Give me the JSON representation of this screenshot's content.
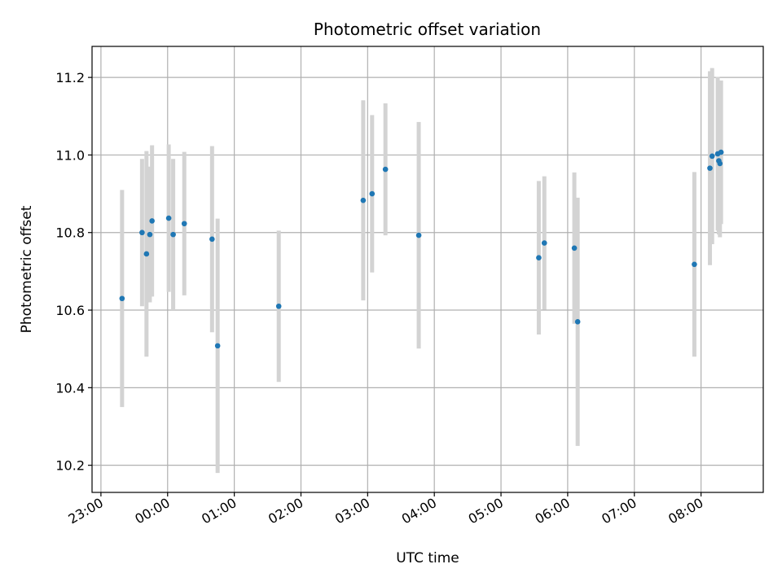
{
  "chart_data": {
    "type": "scatter",
    "title": "Photometric offset variation",
    "xlabel": "UTC time",
    "ylabel": "Photometric offset",
    "x_format": "HH:MM (time of day, first point on previous day)",
    "xlim": [
      "22:52",
      "08:56"
    ],
    "ylim": [
      10.13,
      11.28
    ],
    "x_ticks": [
      "23:00",
      "00:00",
      "01:00",
      "02:00",
      "03:00",
      "04:00",
      "05:00",
      "06:00",
      "07:00",
      "08:00"
    ],
    "y_ticks": [
      "10.2",
      "10.4",
      "10.6",
      "10.8",
      "11.0",
      "11.2"
    ],
    "grid": true,
    "colors": {
      "point": "#1f77b4",
      "errorbar": "#d3d3d3",
      "grid": "#b0b0b0"
    },
    "series": [
      {
        "points": [
          {
            "x": "23:19",
            "y": 10.63,
            "err": 0.28
          },
          {
            "x": "23:37",
            "y": 10.8,
            "err": 0.19
          },
          {
            "x": "23:41",
            "y": 10.745,
            "err": 0.265
          },
          {
            "x": "23:44",
            "y": 10.795,
            "err": 0.175
          },
          {
            "x": "23:46",
            "y": 10.83,
            "err": 0.195
          },
          {
            "x": "00:01",
            "y": 10.837,
            "err": 0.19
          },
          {
            "x": "00:05",
            "y": 10.795,
            "err": 0.195
          },
          {
            "x": "00:15",
            "y": 10.823,
            "err": 0.185
          },
          {
            "x": "00:40",
            "y": 10.783,
            "err": 0.24
          },
          {
            "x": "00:45",
            "y": 10.508,
            "err": 0.328
          },
          {
            "x": "01:40",
            "y": 10.61,
            "err": 0.195
          },
          {
            "x": "02:56",
            "y": 10.883,
            "err": 0.258
          },
          {
            "x": "03:04",
            "y": 10.9,
            "err": 0.203
          },
          {
            "x": "03:16",
            "y": 10.963,
            "err": 0.17
          },
          {
            "x": "03:46",
            "y": 10.793,
            "err": 0.292
          },
          {
            "x": "05:34",
            "y": 10.735,
            "err": 0.198
          },
          {
            "x": "05:39",
            "y": 10.773,
            "err": 0.172
          },
          {
            "x": "06:06",
            "y": 10.76,
            "err": 0.195
          },
          {
            "x": "06:09",
            "y": 10.57,
            "err": 0.32
          },
          {
            "x": "07:54",
            "y": 10.718,
            "err": 0.238
          },
          {
            "x": "08:08",
            "y": 10.966,
            "err": 0.25
          },
          {
            "x": "08:10",
            "y": 10.997,
            "err": 0.227
          },
          {
            "x": "08:15",
            "y": 11.003,
            "err": 0.198
          },
          {
            "x": "08:16",
            "y": 10.985,
            "err": 0.19
          },
          {
            "x": "08:17",
            "y": 10.978,
            "err": 0.19
          },
          {
            "x": "08:18",
            "y": 11.007,
            "err": 0.185
          }
        ]
      }
    ]
  }
}
